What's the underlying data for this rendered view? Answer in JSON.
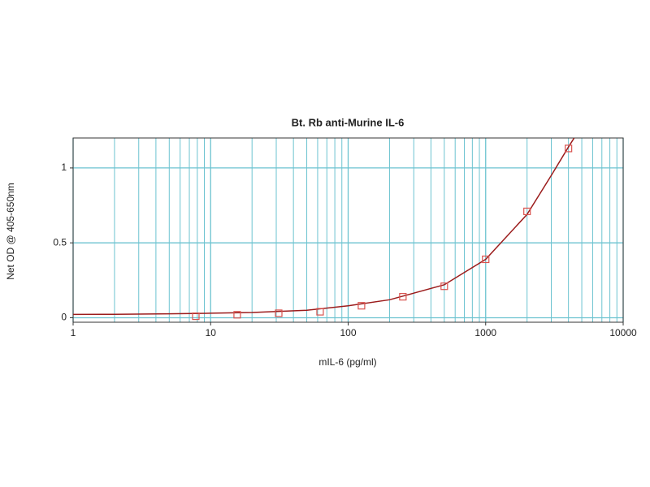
{
  "chart_data": {
    "type": "scatter",
    "title": "Bt. Rb anti-Murine IL-6",
    "x_label": "mIL-6 (pg/ml)",
    "y_label": "Net OD @ 405-650nm",
    "x_log": true,
    "xlim": [
      1,
      10000
    ],
    "ylim": [
      -0.03,
      1.2
    ],
    "xticks": [
      1,
      10,
      100,
      1000,
      10000
    ],
    "x_minor_ticks": [
      2,
      3,
      4,
      5,
      6,
      7,
      8,
      9,
      20,
      30,
      40,
      50,
      60,
      70,
      80,
      90,
      200,
      300,
      400,
      500,
      600,
      700,
      800,
      900,
      2000,
      3000,
      4000,
      5000,
      6000,
      7000,
      8000,
      9000
    ],
    "yticks": [
      0,
      0.5,
      1
    ],
    "grid": true,
    "grid_color": "#6cc3d0",
    "series": [
      {
        "type": "scatter",
        "color": "#d9534f",
        "x": [
          7.8,
          15.6,
          31.25,
          62.5,
          125,
          250,
          500,
          1000,
          2000,
          4000
        ],
        "values": [
          0.01,
          0.02,
          0.03,
          0.04,
          0.08,
          0.14,
          0.21,
          0.39,
          0.71,
          1.13
        ]
      },
      {
        "type": "line",
        "color": "#9b1c1c",
        "x": [
          1,
          2,
          5,
          10,
          20,
          50,
          100,
          200,
          500,
          1000,
          2000,
          3000,
          4000,
          4400
        ],
        "values": [
          0.022,
          0.023,
          0.026,
          0.03,
          0.035,
          0.05,
          0.08,
          0.12,
          0.22,
          0.39,
          0.69,
          0.95,
          1.14,
          1.2
        ]
      }
    ]
  }
}
